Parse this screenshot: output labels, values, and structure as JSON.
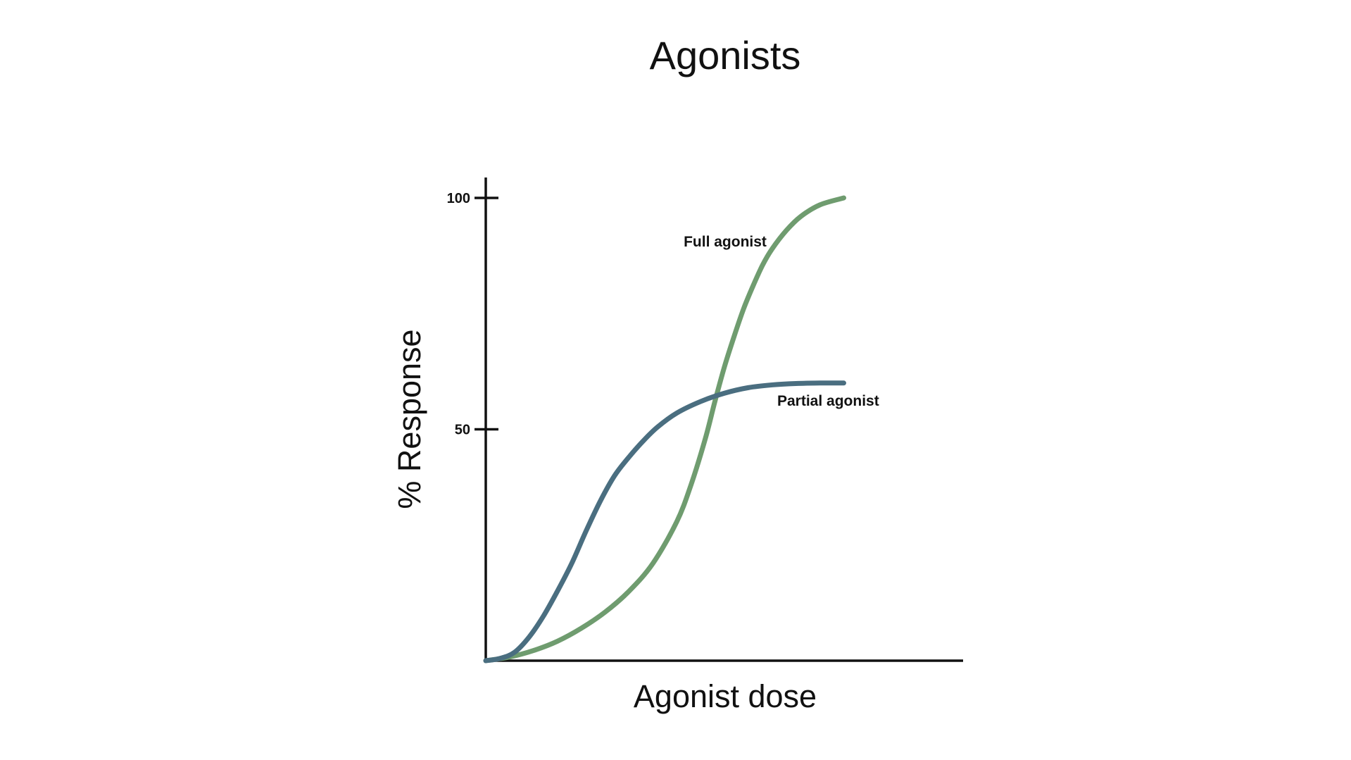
{
  "chart_data": {
    "type": "line",
    "title": "Agonists",
    "xlabel": "Agonist dose",
    "ylabel": "% Response",
    "ylim": [
      0,
      100
    ],
    "yticks": [
      {
        "value": 100,
        "label": "100"
      },
      {
        "value": 50,
        "label": "50"
      }
    ],
    "xlim": [
      0,
      10
    ],
    "grid": false,
    "series": [
      {
        "name": "Partial agonist",
        "color": "#4a6e80",
        "x": [
          0,
          0.3,
          0.6,
          0.9,
          1.2,
          1.5,
          1.8,
          2.1,
          2.4,
          2.7,
          3.0,
          3.3,
          3.6,
          4.0,
          4.5,
          5.0,
          5.5,
          6.0,
          6.5,
          7.0,
          7.5
        ],
        "y": [
          0,
          0.5,
          1.8,
          5,
          9.5,
          15,
          21,
          28,
          34.5,
          40,
          44,
          47.5,
          50.5,
          53.5,
          56,
          57.8,
          59,
          59.6,
          59.9,
          60,
          60
        ]
      },
      {
        "name": "Full agonist",
        "color": "#6f9c6f",
        "x": [
          0,
          0.5,
          1.0,
          1.5,
          2.0,
          2.5,
          3.0,
          3.5,
          4.0,
          4.3,
          4.6,
          4.8,
          5.0,
          5.2,
          5.4,
          5.6,
          5.8,
          6.0,
          6.3,
          6.6,
          7.0,
          7.5
        ],
        "y": [
          0,
          0.8,
          2.2,
          4.2,
          7,
          10.5,
          15,
          21,
          30,
          38,
          48,
          56,
          63.5,
          70,
          76,
          81,
          85.5,
          89,
          93,
          96,
          98.5,
          100
        ]
      }
    ]
  }
}
